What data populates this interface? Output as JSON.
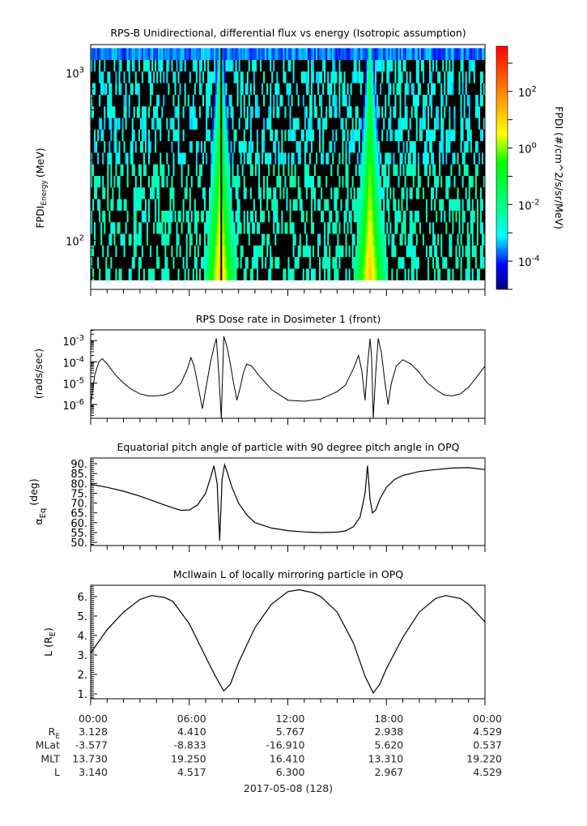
{
  "chart_data": [
    {
      "type": "heatmap",
      "title": "RPS-B  Unidirectional, differential flux vs energy (Isotropic assumption)",
      "ylabel_main": "FPDI",
      "ylabel_sub": "Energy",
      "ylabel_unit": "(MeV)",
      "yscale": "log",
      "ylim": [
        51,
        1470
      ],
      "yticks": [
        {
          "value": 100,
          "base": "10",
          "exp": "2"
        },
        {
          "value": 1000,
          "base": "10",
          "exp": "3"
        }
      ],
      "energy_range": [
        58,
        1400
      ],
      "energy_bins": 20,
      "xlim_hours": [
        0,
        24
      ],
      "radiation_belt_crossings_hours": [
        7.9,
        17.0
      ],
      "colorbar": {
        "label": "FPDI (#/cm^2/s/sr/MeV)",
        "log10_range": [
          -5.0,
          3.6
        ],
        "ticks": [
          {
            "log": 2,
            "base": "10",
            "exp": "2"
          },
          {
            "log": 0,
            "base": "10",
            "exp": "0"
          },
          {
            "log": -2,
            "base": "10",
            "exp": "-2"
          },
          {
            "log": -4,
            "base": "10",
            "exp": "-4"
          }
        ],
        "colors": [
          "#00007f",
          "#0000ff",
          "#00ffff",
          "#00ff80",
          "#00ff00",
          "#ffff00",
          "#ff8000",
          "#ff0000"
        ]
      }
    },
    {
      "type": "line",
      "title": "RPS  Dose rate in Dosimeter 1 (front)",
      "ylabel": "(rads/sec)",
      "yscale": "log",
      "ylim_log10": [
        -6.65,
        -2.5
      ],
      "yticks": [
        {
          "log": -3,
          "base": "10",
          "exp": "-3"
        },
        {
          "log": -4,
          "base": "10",
          "exp": "-4"
        },
        {
          "log": -5,
          "base": "10",
          "exp": "-5"
        },
        {
          "log": -6,
          "base": "10",
          "exp": "-6"
        }
      ],
      "x_hours": [
        0,
        0.25,
        0.5,
        0.7,
        1,
        1.5,
        2,
        2.5,
        3,
        3.5,
        4,
        4.5,
        5,
        5.5,
        5.9,
        6.1,
        6.3,
        6.5,
        6.8,
        7.0,
        7.3,
        7.5,
        7.65,
        7.8,
        7.95,
        8.1,
        8.3,
        8.5,
        8.7,
        8.9,
        9.1,
        9.3,
        9.5,
        9.8,
        10.2,
        11,
        12,
        13,
        14,
        15,
        15.5,
        16,
        16.3,
        16.5,
        16.7,
        16.85,
        17.0,
        17.1,
        17.2,
        17.35,
        17.5,
        17.7,
        17.9,
        18.1,
        18.3,
        18.6,
        19.0,
        19.5,
        20,
        20.5,
        21,
        21.5,
        22,
        22.5,
        23,
        23.5,
        24
      ],
      "log10_dose": [
        -6.0,
        -4.6,
        -4.0,
        -3.85,
        -4.1,
        -4.6,
        -5.0,
        -5.3,
        -5.5,
        -5.6,
        -5.6,
        -5.55,
        -5.4,
        -5.0,
        -4.3,
        -3.8,
        -4.2,
        -5.0,
        -6.2,
        -5.3,
        -4.0,
        -3.3,
        -2.9,
        -4.6,
        -7.0,
        -2.8,
        -3.3,
        -4.1,
        -5.0,
        -5.8,
        -5.2,
        -4.5,
        -4.1,
        -4.2,
        -4.6,
        -5.3,
        -5.8,
        -5.85,
        -5.75,
        -5.4,
        -5.1,
        -4.3,
        -3.7,
        -4.4,
        -5.8,
        -4.2,
        -2.9,
        -3.8,
        -6.8,
        -4.5,
        -2.9,
        -3.6,
        -4.9,
        -6.0,
        -5.0,
        -4.2,
        -3.9,
        -4.1,
        -4.5,
        -5.0,
        -5.3,
        -5.55,
        -5.6,
        -5.5,
        -5.2,
        -4.7,
        -4.2
      ]
    },
    {
      "type": "line",
      "title": "Equatorial pitch angle of particle with 90 degree pitch angle in OPQ",
      "ylabel_main": "α",
      "ylabel_sub": "Eq",
      "ylabel_unit": "(deg)",
      "ylim": [
        48.4,
        92.9
      ],
      "yticks": [
        "90.",
        "85.",
        "80.",
        "75.",
        "70.",
        "65.",
        "60.",
        "55.",
        "50."
      ],
      "ytick_values": [
        90,
        85,
        80,
        75,
        70,
        65,
        60,
        55,
        50
      ],
      "x_hours": [
        0,
        1,
        2,
        3,
        4,
        5,
        5.5,
        6,
        6.5,
        7,
        7.3,
        7.5,
        7.7,
        7.85,
        8.0,
        8.15,
        8.3,
        8.6,
        9,
        9.5,
        10,
        11,
        12,
        13,
        14,
        15,
        15.5,
        16,
        16.4,
        16.7,
        16.85,
        17.0,
        17.15,
        17.35,
        17.6,
        18,
        18.5,
        19,
        20,
        21,
        22,
        23,
        24
      ],
      "alpha_eq_deg": [
        79.5,
        78,
        76,
        73.5,
        70.5,
        67.5,
        66.3,
        66.5,
        69,
        75,
        83,
        89,
        80,
        51,
        82,
        89.5,
        86,
        78,
        70,
        64,
        60,
        57.3,
        56,
        55.3,
        55,
        55.2,
        55.8,
        58,
        63,
        75,
        89,
        72,
        65,
        66.5,
        72,
        78,
        82,
        84,
        86,
        87,
        87.8,
        88,
        87
      ]
    },
    {
      "type": "line",
      "title": "McIlwain L of locally mirroring particle in OPQ",
      "ylabel_main": "L (R",
      "ylabel_sub": "E",
      "ylabel_end": ")",
      "ylim": [
        0.75,
        6.58
      ],
      "yticks": [
        "6.",
        "5.",
        "4.",
        "3.",
        "2.",
        "1."
      ],
      "ytick_values": [
        6,
        5,
        4,
        3,
        2,
        1
      ],
      "x_hours": [
        0,
        1,
        2,
        3,
        3.7,
        4.5,
        5,
        6,
        7,
        7.6,
        8.1,
        8.5,
        9,
        10,
        11,
        12,
        12.7,
        13.5,
        14,
        15,
        16,
        16.7,
        17.2,
        17.6,
        18,
        19,
        20,
        21,
        21.6,
        22.5,
        23,
        24
      ],
      "L": [
        3.1,
        4.3,
        5.2,
        5.85,
        6.05,
        5.95,
        5.75,
        4.6,
        2.9,
        1.9,
        1.15,
        1.5,
        2.6,
        4.4,
        5.6,
        6.25,
        6.35,
        6.2,
        6.0,
        5.2,
        3.6,
        1.9,
        1.05,
        1.5,
        2.3,
        3.9,
        5.2,
        5.9,
        6.05,
        5.9,
        5.6,
        4.7
      ]
    }
  ],
  "ephemeris": {
    "times": [
      "00:00",
      "06:00",
      "12:00",
      "18:00",
      "00:00"
    ],
    "rows": [
      {
        "label": "R",
        "label_sub": "E",
        "values": [
          "3.128",
          "4.410",
          "5.767",
          "2.938",
          "4.529"
        ]
      },
      {
        "label": "MLat",
        "label_sub": "",
        "values": [
          "-3.577",
          "-8.833",
          "-16.910",
          "5.620",
          "0.537"
        ]
      },
      {
        "label": "MLT",
        "label_sub": "",
        "values": [
          "13.730",
          "19.250",
          "16.410",
          "13.310",
          "19.220"
        ]
      },
      {
        "label": "L",
        "label_sub": "",
        "values": [
          "3.140",
          "4.517",
          "6.300",
          "2.967",
          "4.529"
        ]
      }
    ],
    "date": "2017-05-08 (128)"
  }
}
